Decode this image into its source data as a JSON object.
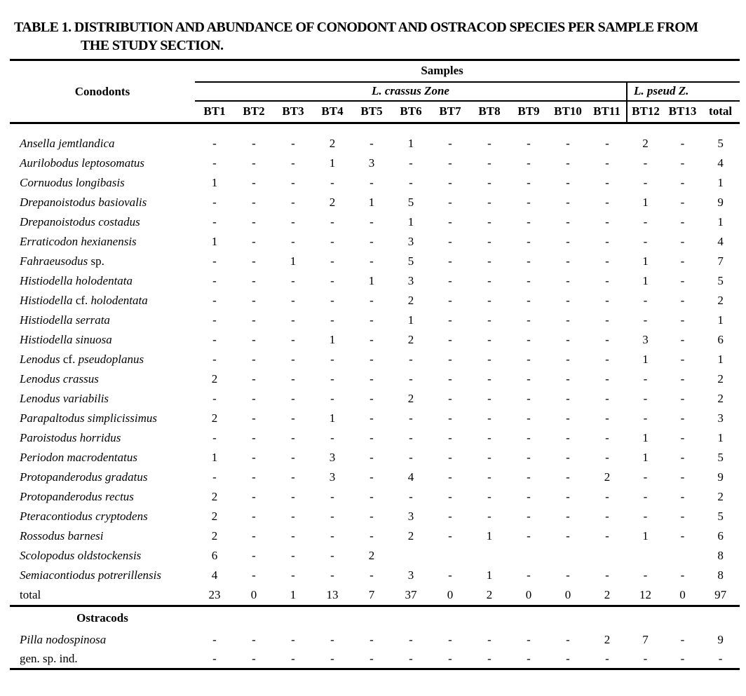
{
  "title": {
    "line1": "TABLE 1. DISTRIBUTION AND ABUNDANCE OF CONODONT AND OSTRACOD SPECIES PER SAMPLE FROM",
    "line2": "THE STUDY SECTION."
  },
  "colors": {
    "text": "#000000",
    "background": "#ffffff",
    "rule_lines": "#000000"
  },
  "table": {
    "samples_header": "Samples",
    "group_label": "Conodonts",
    "ostracods_label": "Ostracods",
    "zones": [
      {
        "label": "L. crassus Zone",
        "span": 11
      },
      {
        "label": "L. pseud Z.",
        "span": 3
      }
    ],
    "columns": [
      "BT1",
      "BT2",
      "BT3",
      "BT4",
      "BT5",
      "BT6",
      "BT7",
      "BT8",
      "BT9",
      "BT10",
      "BT11",
      "BT12",
      "BT13",
      "total"
    ],
    "conodont_rows": [
      {
        "name_parts": [
          {
            "text": "Ansella jemtlandica",
            "italic": true
          }
        ],
        "values": [
          "-",
          "-",
          "-",
          "2",
          "-",
          "1",
          "-",
          "-",
          "-",
          "-",
          "-",
          "2",
          "-",
          "5"
        ]
      },
      {
        "name_parts": [
          {
            "text": "Aurilobodus leptosomatus",
            "italic": true
          }
        ],
        "values": [
          "-",
          "-",
          "-",
          "1",
          "3",
          "-",
          "-",
          "-",
          "-",
          "-",
          "-",
          "-",
          "-",
          "4"
        ]
      },
      {
        "name_parts": [
          {
            "text": "Cornuodus longibasis",
            "italic": true
          }
        ],
        "values": [
          "1",
          "-",
          "-",
          "-",
          "-",
          "-",
          "-",
          "-",
          "-",
          "-",
          "-",
          "-",
          "-",
          "1"
        ]
      },
      {
        "name_parts": [
          {
            "text": "Drepanoistodus basiovalis",
            "italic": true
          }
        ],
        "values": [
          "-",
          "-",
          "-",
          "2",
          "1",
          "5",
          "-",
          "-",
          "-",
          "-",
          "-",
          "1",
          "-",
          "9"
        ]
      },
      {
        "name_parts": [
          {
            "text": "Drepanoistodus costadus",
            "italic": true
          }
        ],
        "values": [
          "-",
          "-",
          "-",
          "-",
          "-",
          "1",
          "-",
          "-",
          "-",
          "-",
          "-",
          "-",
          "-",
          "1"
        ]
      },
      {
        "name_parts": [
          {
            "text": "Erraticodon hexianensis",
            "italic": true
          }
        ],
        "values": [
          "1",
          "-",
          "-",
          "-",
          "-",
          "3",
          "-",
          "-",
          "-",
          "-",
          "-",
          "-",
          "-",
          "4"
        ]
      },
      {
        "name_parts": [
          {
            "text": "Fahraeusodus",
            "italic": true
          },
          {
            "text": " sp.",
            "italic": false
          }
        ],
        "values": [
          "-",
          "-",
          "1",
          "-",
          "-",
          "5",
          "-",
          "-",
          "-",
          "-",
          "-",
          "1",
          "-",
          "7"
        ]
      },
      {
        "name_parts": [
          {
            "text": "Histiodella holodentata",
            "italic": true
          }
        ],
        "values": [
          "-",
          "-",
          "-",
          "-",
          "1",
          "3",
          "-",
          "-",
          "-",
          "-",
          "-",
          "1",
          "-",
          "5"
        ]
      },
      {
        "name_parts": [
          {
            "text": "Histiodella",
            "italic": true
          },
          {
            "text": " cf. ",
            "italic": false
          },
          {
            "text": "holodentata",
            "italic": true
          }
        ],
        "values": [
          "-",
          "-",
          "-",
          "-",
          "-",
          "2",
          "-",
          "-",
          "-",
          "-",
          "-",
          "-",
          "-",
          "2"
        ]
      },
      {
        "name_parts": [
          {
            "text": "Histiodella serrata",
            "italic": true
          }
        ],
        "values": [
          "-",
          "-",
          "-",
          "-",
          "-",
          "1",
          "-",
          "-",
          "-",
          "-",
          "-",
          "-",
          "-",
          "1"
        ]
      },
      {
        "name_parts": [
          {
            "text": "Histiodella sinuosa",
            "italic": true
          }
        ],
        "values": [
          "-",
          "-",
          "-",
          "1",
          "-",
          "2",
          "-",
          "-",
          "-",
          "-",
          "-",
          "3",
          "-",
          "6"
        ]
      },
      {
        "name_parts": [
          {
            "text": "Lenodus",
            "italic": true
          },
          {
            "text": " cf. ",
            "italic": false
          },
          {
            "text": "pseudoplanus",
            "italic": true
          }
        ],
        "values": [
          "-",
          "-",
          "-",
          "-",
          "-",
          "-",
          "-",
          "-",
          "-",
          "-",
          "-",
          "1",
          "-",
          "1"
        ]
      },
      {
        "name_parts": [
          {
            "text": "Lenodus crassus",
            "italic": true
          }
        ],
        "values": [
          "2",
          "-",
          "-",
          "-",
          "-",
          "-",
          "-",
          "-",
          "-",
          "-",
          "-",
          "-",
          "-",
          "2"
        ]
      },
      {
        "name_parts": [
          {
            "text": "Lenodus variabilis",
            "italic": true
          }
        ],
        "values": [
          "-",
          "-",
          "-",
          "-",
          "-",
          "2",
          "-",
          "-",
          "-",
          "-",
          "-",
          "-",
          "-",
          "2"
        ]
      },
      {
        "name_parts": [
          {
            "text": "Parapaltodus simplicissimus",
            "italic": true
          }
        ],
        "values": [
          "2",
          "-",
          "-",
          "1",
          "-",
          "-",
          "-",
          "-",
          "-",
          "-",
          "-",
          "-",
          "-",
          "3"
        ]
      },
      {
        "name_parts": [
          {
            "text": "Paroistodus horridus",
            "italic": true
          }
        ],
        "values": [
          "-",
          "-",
          "-",
          "-",
          "-",
          "-",
          "-",
          "-",
          "-",
          "-",
          "-",
          "1",
          "-",
          "1"
        ]
      },
      {
        "name_parts": [
          {
            "text": "Periodon macrodentatus",
            "italic": true
          }
        ],
        "values": [
          "1",
          "-",
          "-",
          "3",
          "-",
          "-",
          "-",
          "-",
          "-",
          "-",
          "-",
          "1",
          "-",
          "5"
        ]
      },
      {
        "name_parts": [
          {
            "text": "Protopanderodus gradatus",
            "italic": true
          }
        ],
        "values": [
          "-",
          "-",
          "-",
          "3",
          "-",
          "4",
          "-",
          "-",
          "-",
          "-",
          "2",
          "-",
          "-",
          "9"
        ]
      },
      {
        "name_parts": [
          {
            "text": "Protopanderodus rectus",
            "italic": true
          }
        ],
        "values": [
          "2",
          "-",
          "-",
          "-",
          "-",
          "-",
          "-",
          "-",
          "-",
          "-",
          "-",
          "-",
          "-",
          "2"
        ]
      },
      {
        "name_parts": [
          {
            "text": "Pteracontiodus cryptodens",
            "italic": true
          }
        ],
        "values": [
          "2",
          "-",
          "-",
          "-",
          "-",
          "3",
          "-",
          "-",
          "-",
          "-",
          "-",
          "-",
          "-",
          "5"
        ]
      },
      {
        "name_parts": [
          {
            "text": "Rossodus barnesi",
            "italic": true
          }
        ],
        "values": [
          "2",
          "-",
          "-",
          "-",
          "-",
          "2",
          "-",
          "1",
          "-",
          "-",
          "-",
          "1",
          "-",
          "6"
        ]
      },
      {
        "name_parts": [
          {
            "text": "Scolopodus oldstockensis",
            "italic": true
          }
        ],
        "values": [
          "6",
          "-",
          "-",
          "-",
          "2",
          "",
          "",
          "",
          "",
          "",
          "",
          "",
          "",
          "8"
        ]
      },
      {
        "name_parts": [
          {
            "text": "Semiacontiodus potrerillensis",
            "italic": true
          }
        ],
        "values": [
          "4",
          "-",
          "-",
          "-",
          "-",
          "3",
          "-",
          "1",
          "-",
          "-",
          "-",
          "-",
          "-",
          "8"
        ]
      }
    ],
    "total_row": {
      "name_parts": [
        {
          "text": "total",
          "italic": false
        }
      ],
      "values": [
        "23",
        "0",
        "1",
        "13",
        "7",
        "37",
        "0",
        "2",
        "0",
        "0",
        "2",
        "12",
        "0",
        "97"
      ]
    },
    "ostracod_rows": [
      {
        "name_parts": [
          {
            "text": "Pilla nodospinosa",
            "italic": true
          }
        ],
        "values": [
          "-",
          "-",
          "-",
          "-",
          "-",
          "-",
          "-",
          "-",
          "-",
          "-",
          "2",
          "7",
          "-",
          "9"
        ]
      },
      {
        "name_parts": [
          {
            "text": "gen. sp. ind.",
            "italic": false
          }
        ],
        "values": [
          "-",
          "-",
          "-",
          "-",
          "-",
          "-",
          "-",
          "-",
          "-",
          "-",
          "-",
          "-",
          "-",
          "-"
        ]
      }
    ]
  }
}
